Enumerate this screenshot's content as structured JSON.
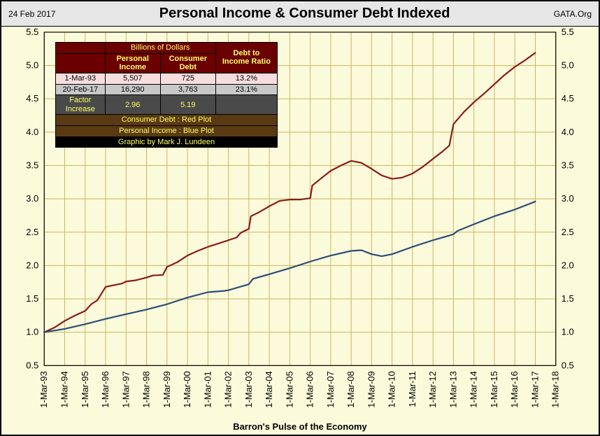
{
  "header": {
    "date": "24 Feb 2017",
    "title": "Personal Income & Consumer Debt Indexed",
    "source": "GATA.Org"
  },
  "footer": "Barron's Pulse of the Economy",
  "chart": {
    "type": "line",
    "background_color": "#fbfada",
    "grid_color": "#c8b760",
    "axis_color": "#000000",
    "ylim": [
      0.5,
      5.5
    ],
    "ytick_step": 0.5,
    "yticks": [
      "0.5",
      "1.0",
      "1.5",
      "2.0",
      "2.5",
      "3.0",
      "3.5",
      "4.0",
      "4.5",
      "5.0",
      "5.5"
    ],
    "x_labels": [
      "1-Mar-93",
      "1-Mar-94",
      "1-Mar-95",
      "1-Mar-96",
      "1-Mar-97",
      "1-Mar-98",
      "1-Mar-99",
      "1-Mar-00",
      "1-Mar-01",
      "1-Mar-02",
      "1-Mar-03",
      "1-Mar-04",
      "1-Mar-05",
      "1-Mar-06",
      "1-Mar-07",
      "1-Mar-08",
      "1-Mar-09",
      "1-Mar-10",
      "1-Mar-11",
      "1-Mar-12",
      "1-Mar-13",
      "1-Mar-14",
      "1-Mar-15",
      "1-Mar-16",
      "1-Mar-17",
      "1-Mar-18"
    ],
    "series": {
      "debt": {
        "label": "Consumer Debt",
        "color": "#8b1a1a",
        "line_width": 2.2,
        "points": [
          [
            0,
            1.0
          ],
          [
            0.5,
            1.07
          ],
          [
            1,
            1.17
          ],
          [
            1.5,
            1.25
          ],
          [
            2,
            1.32
          ],
          [
            2.3,
            1.42
          ],
          [
            2.6,
            1.48
          ],
          [
            3,
            1.68
          ],
          [
            3.3,
            1.7
          ],
          [
            3.8,
            1.73
          ],
          [
            4,
            1.76
          ],
          [
            4.5,
            1.78
          ],
          [
            5,
            1.82
          ],
          [
            5.3,
            1.85
          ],
          [
            5.8,
            1.86
          ],
          [
            6,
            1.98
          ],
          [
            6.5,
            2.05
          ],
          [
            7,
            2.15
          ],
          [
            7.5,
            2.22
          ],
          [
            8,
            2.28
          ],
          [
            8.5,
            2.33
          ],
          [
            9,
            2.38
          ],
          [
            9.4,
            2.42
          ],
          [
            9.6,
            2.49
          ],
          [
            10,
            2.55
          ],
          [
            10.1,
            2.74
          ],
          [
            10.5,
            2.8
          ],
          [
            11,
            2.89
          ],
          [
            11.5,
            2.97
          ],
          [
            12,
            2.99
          ],
          [
            12.5,
            2.99
          ],
          [
            13,
            3.01
          ],
          [
            13.1,
            3.2
          ],
          [
            13.5,
            3.3
          ],
          [
            14,
            3.42
          ],
          [
            14.5,
            3.5
          ],
          [
            15,
            3.57
          ],
          [
            15.5,
            3.54
          ],
          [
            16,
            3.45
          ],
          [
            16.5,
            3.35
          ],
          [
            17,
            3.3
          ],
          [
            17.5,
            3.32
          ],
          [
            18,
            3.38
          ],
          [
            18.5,
            3.48
          ],
          [
            19,
            3.6
          ],
          [
            19.5,
            3.72
          ],
          [
            19.8,
            3.8
          ],
          [
            20,
            4.12
          ],
          [
            20.5,
            4.3
          ],
          [
            21,
            4.45
          ],
          [
            21.5,
            4.58
          ],
          [
            22,
            4.72
          ],
          [
            22.5,
            4.86
          ],
          [
            23,
            4.98
          ],
          [
            23.5,
            5.08
          ],
          [
            24,
            5.19
          ]
        ]
      },
      "income": {
        "label": "Personal Income",
        "color": "#2a4d7a",
        "line_width": 2.2,
        "points": [
          [
            0,
            1.0
          ],
          [
            1,
            1.05
          ],
          [
            2,
            1.12
          ],
          [
            3,
            1.2
          ],
          [
            4,
            1.27
          ],
          [
            5,
            1.34
          ],
          [
            6,
            1.42
          ],
          [
            7,
            1.52
          ],
          [
            8,
            1.6
          ],
          [
            8.8,
            1.62
          ],
          [
            9,
            1.63
          ],
          [
            10,
            1.72
          ],
          [
            10.2,
            1.8
          ],
          [
            11,
            1.87
          ],
          [
            12,
            1.96
          ],
          [
            13,
            2.06
          ],
          [
            14,
            2.15
          ],
          [
            15,
            2.22
          ],
          [
            15.5,
            2.23
          ],
          [
            16,
            2.17
          ],
          [
            16.5,
            2.14
          ],
          [
            17,
            2.17
          ],
          [
            18,
            2.28
          ],
          [
            19,
            2.38
          ],
          [
            19.8,
            2.45
          ],
          [
            20,
            2.47
          ],
          [
            20.2,
            2.52
          ],
          [
            21,
            2.62
          ],
          [
            22,
            2.74
          ],
          [
            23,
            2.84
          ],
          [
            24,
            2.96
          ]
        ]
      }
    }
  },
  "table": {
    "header_top": "Billions of Dollars",
    "columns": [
      "",
      "Personal Income",
      "Consumer Debt",
      "Debt to Income Ratio"
    ],
    "rows": [
      {
        "cls": "row-a",
        "cells": [
          "1-Mar-93",
          "5,507",
          "725",
          "13.2%"
        ]
      },
      {
        "cls": "row-b",
        "cells": [
          "20-Feb-17",
          "16,290",
          "3,763",
          "23.1%"
        ]
      },
      {
        "cls": "row-c",
        "cells": [
          "Factor Increase",
          "2.96",
          "5.19",
          ""
        ]
      }
    ],
    "legend": [
      "Consumer Debt   : Red Plot",
      "Personal Income : Blue Plot"
    ],
    "credit": "Graphic by Mark J. Lundeen"
  }
}
